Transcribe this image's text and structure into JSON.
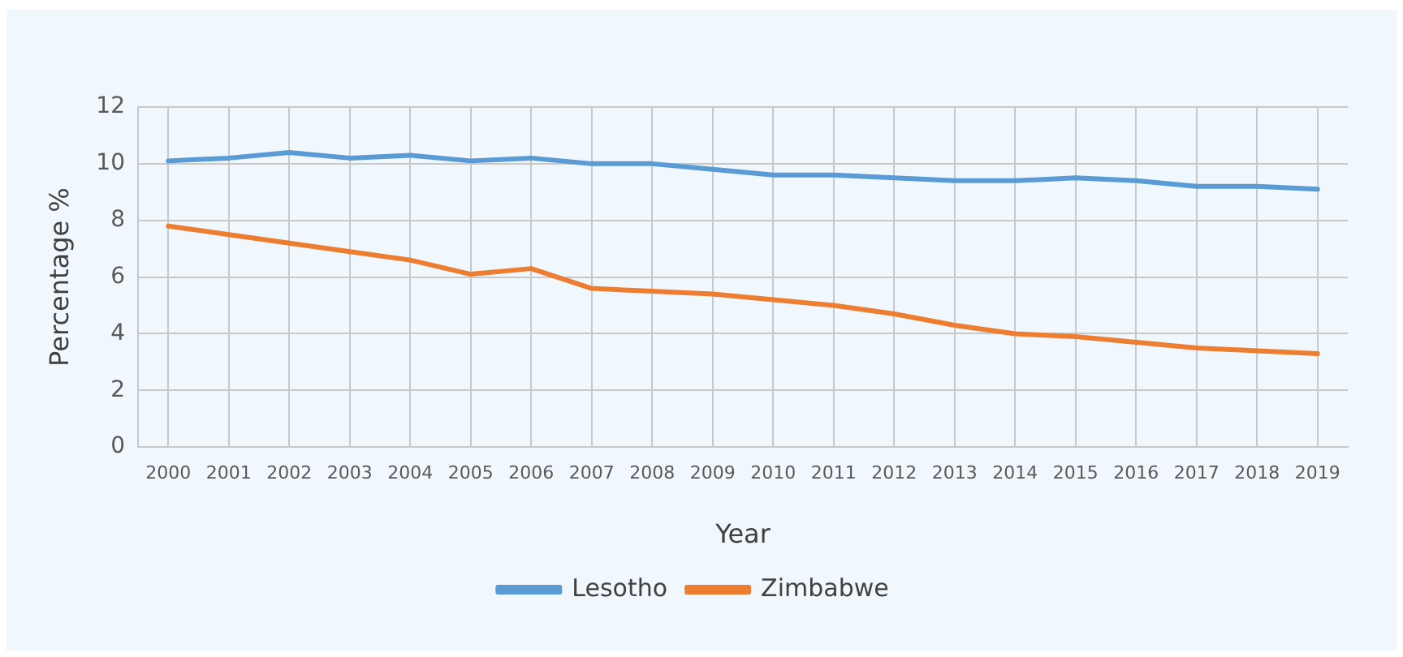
{
  "chart_data": {
    "type": "line",
    "xlabel": "Year",
    "ylabel": "Percentage %",
    "categories": [
      "2000",
      "2001",
      "2002",
      "2003",
      "2004",
      "2005",
      "2006",
      "2007",
      "2008",
      "2009",
      "2010",
      "2011",
      "2012",
      "2013",
      "2014",
      "2015",
      "2016",
      "2017",
      "2018",
      "2019"
    ],
    "series": [
      {
        "name": "Lesotho",
        "color": "#5b9bd5",
        "values": [
          10.1,
          10.2,
          10.4,
          10.2,
          10.3,
          10.1,
          10.2,
          10.0,
          10.0,
          9.8,
          9.6,
          9.6,
          9.5,
          9.4,
          9.4,
          9.5,
          9.4,
          9.2,
          9.2,
          9.1
        ]
      },
      {
        "name": "Zimbabwe",
        "color": "#ed7d31",
        "values": [
          7.8,
          7.5,
          7.2,
          6.9,
          6.6,
          6.1,
          6.3,
          5.6,
          5.5,
          5.4,
          5.2,
          5.0,
          4.7,
          4.3,
          4.0,
          3.9,
          3.7,
          3.5,
          3.4,
          3.3
        ]
      }
    ],
    "ylim": [
      0,
      12
    ],
    "yticks": [
      0,
      2,
      4,
      6,
      8,
      10,
      12
    ],
    "grid": true,
    "legend": "bottom",
    "marker": "none",
    "line_style": "solid"
  }
}
